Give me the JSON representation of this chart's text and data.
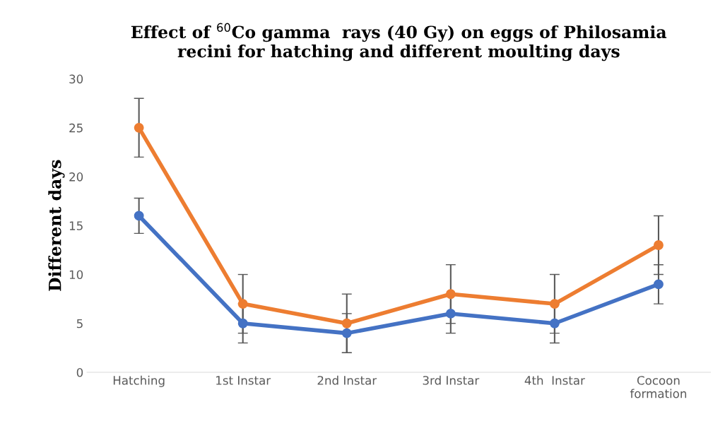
{
  "chart_data": {
    "type": "line",
    "title": "Effect of $^{60}$Co gamma  rays (40 Gy) on eggs of Philosamia\nrecini for hatching and different moulting days",
    "ylabel": "Different days",
    "categories": [
      "Hatching",
      "1st Instar",
      "2nd Instar",
      "3rd Instar",
      "4th  Instar",
      "Cocoon\nformation"
    ],
    "series": [
      {
        "color": "#4472c4",
        "values": [
          16,
          5,
          4,
          6,
          5,
          9
        ],
        "errors": [
          1.8,
          2,
          2,
          2,
          2,
          2
        ]
      },
      {
        "color": "#ed7d31",
        "values": [
          25,
          7,
          5,
          8,
          7,
          13
        ],
        "errors": [
          3,
          3,
          3,
          3,
          3,
          3
        ]
      }
    ],
    "ylim": [
      0,
      30
    ],
    "yticks": [
      0,
      5,
      10,
      15,
      20,
      25,
      30
    ],
    "grid": false,
    "legend": false,
    "marker": "circle",
    "line_style": "solid"
  }
}
